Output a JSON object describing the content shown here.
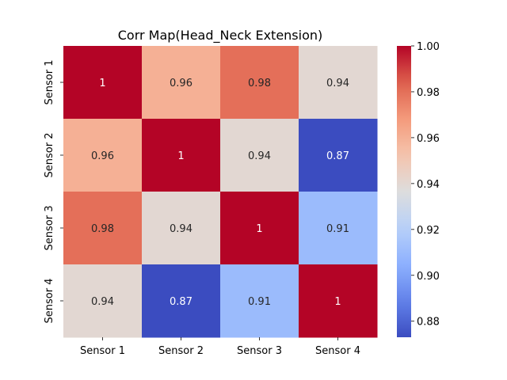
{
  "chart_data": {
    "type": "heatmap",
    "title": "Corr Map(Head_Neck Extension)",
    "x_categories": [
      "Sensor 1",
      "Sensor 2",
      "Sensor 3",
      "Sensor 4"
    ],
    "y_categories": [
      "Sensor 1",
      "Sensor 2",
      "Sensor 3",
      "Sensor 4"
    ],
    "values": [
      [
        1.0,
        0.96,
        0.98,
        0.94
      ],
      [
        0.96,
        1.0,
        0.94,
        0.87
      ],
      [
        0.98,
        0.94,
        1.0,
        0.91
      ],
      [
        0.94,
        0.87,
        0.91,
        1.0
      ]
    ],
    "annotations": [
      [
        "1",
        "0.96",
        "0.98",
        "0.94"
      ],
      [
        "0.96",
        "1",
        "0.94",
        "0.87"
      ],
      [
        "0.98",
        "0.94",
        "1",
        "0.91"
      ],
      [
        "0.94",
        "0.87",
        "0.91",
        "1"
      ]
    ],
    "colormap": "coolwarm",
    "colorbar": {
      "range": [
        0.873,
        1.0
      ],
      "ticks": [
        0.88,
        0.9,
        0.92,
        0.94,
        0.96,
        0.98,
        1.0
      ],
      "tick_labels": [
        "0.88",
        "0.90",
        "0.92",
        "0.94",
        "0.96",
        "0.98",
        "1.00"
      ],
      "placement": "right"
    },
    "xlabel": "",
    "ylabel": "",
    "grid": false
  }
}
